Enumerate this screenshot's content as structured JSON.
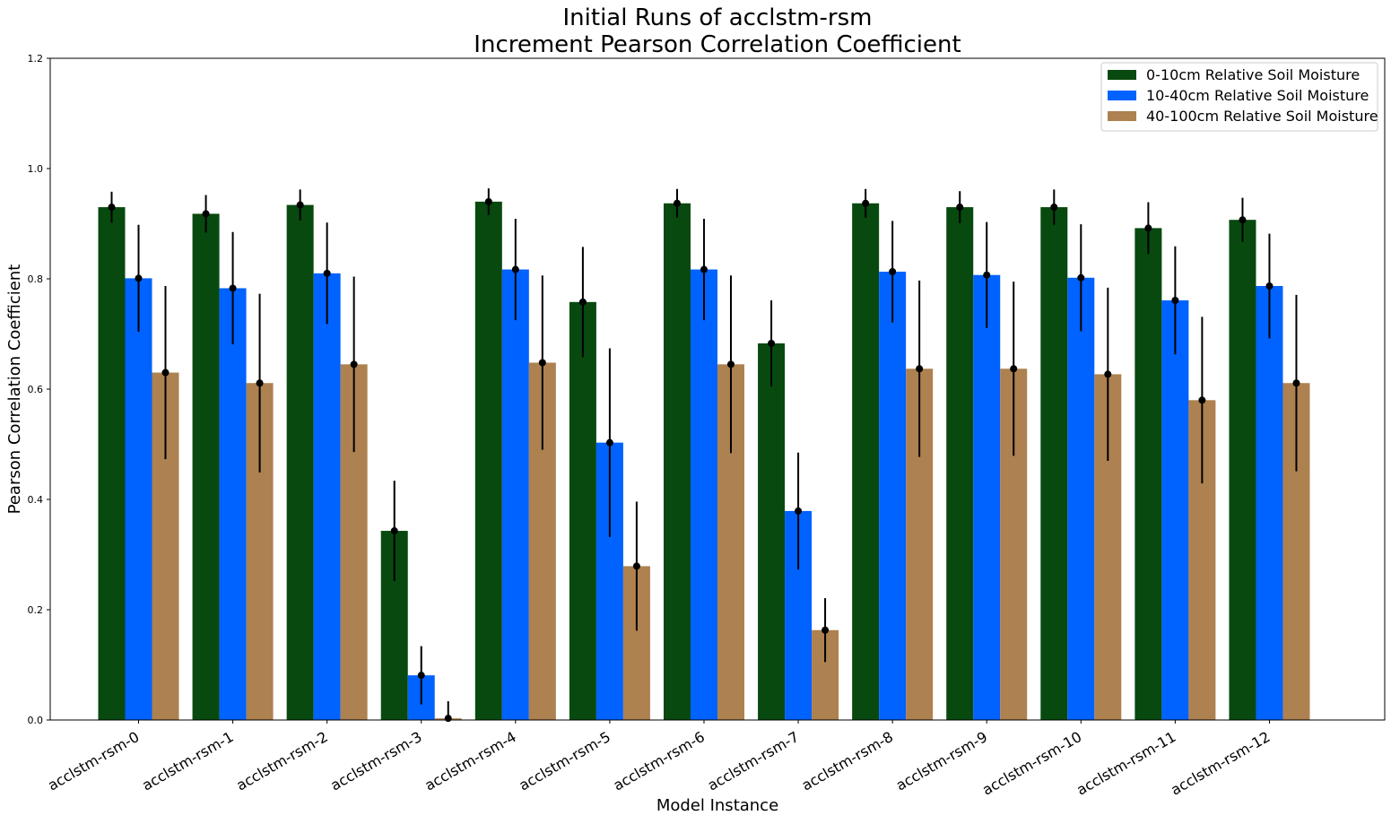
{
  "chart_data": {
    "type": "bar",
    "title_line1": "Initial Runs of acclstm-rsm",
    "title_line2": "Increment Pearson Correlation Coefficient",
    "xlabel": "Model Instance",
    "ylabel": "Pearson Correlation Coefficient",
    "ylim": [
      0,
      1.2
    ],
    "yticks": [
      "0.0",
      "0.2",
      "0.4",
      "0.6",
      "0.8",
      "1.0",
      "1.2"
    ],
    "grid": false,
    "legend_position": "top-right",
    "categories": [
      "acclstm-rsm-0",
      "acclstm-rsm-1",
      "acclstm-rsm-2",
      "acclstm-rsm-3",
      "acclstm-rsm-4",
      "acclstm-rsm-5",
      "acclstm-rsm-6",
      "acclstm-rsm-7",
      "acclstm-rsm-8",
      "acclstm-rsm-9",
      "acclstm-rsm-10",
      "acclstm-rsm-11",
      "acclstm-rsm-12"
    ],
    "series": [
      {
        "name": "0-10cm Relative Soil Moisture",
        "color": "#08490f",
        "values": [
          0.93,
          0.918,
          0.934,
          0.343,
          0.94,
          0.758,
          0.937,
          0.683,
          0.937,
          0.93,
          0.93,
          0.892,
          0.907
        ],
        "errors": [
          0.028,
          0.034,
          0.028,
          0.091,
          0.024,
          0.1,
          0.026,
          0.078,
          0.026,
          0.029,
          0.032,
          0.047,
          0.04
        ]
      },
      {
        "name": "10-40cm Relative Soil Moisture",
        "color": "#0062ff",
        "values": [
          0.801,
          0.783,
          0.81,
          0.081,
          0.817,
          0.503,
          0.817,
          0.379,
          0.813,
          0.807,
          0.802,
          0.761,
          0.787
        ],
        "errors": [
          0.097,
          0.102,
          0.092,
          0.053,
          0.092,
          0.171,
          0.092,
          0.106,
          0.092,
          0.096,
          0.097,
          0.098,
          0.095
        ]
      },
      {
        "name": "40-100cm Relative Soil Moisture",
        "color": "#ad8150",
        "values": [
          0.63,
          0.611,
          0.645,
          0.003,
          0.648,
          0.279,
          0.645,
          0.163,
          0.637,
          0.637,
          0.627,
          0.58,
          0.611
        ],
        "errors": [
          0.157,
          0.162,
          0.159,
          0.031,
          0.158,
          0.117,
          0.161,
          0.058,
          0.16,
          0.158,
          0.157,
          0.151,
          0.16
        ]
      }
    ]
  }
}
